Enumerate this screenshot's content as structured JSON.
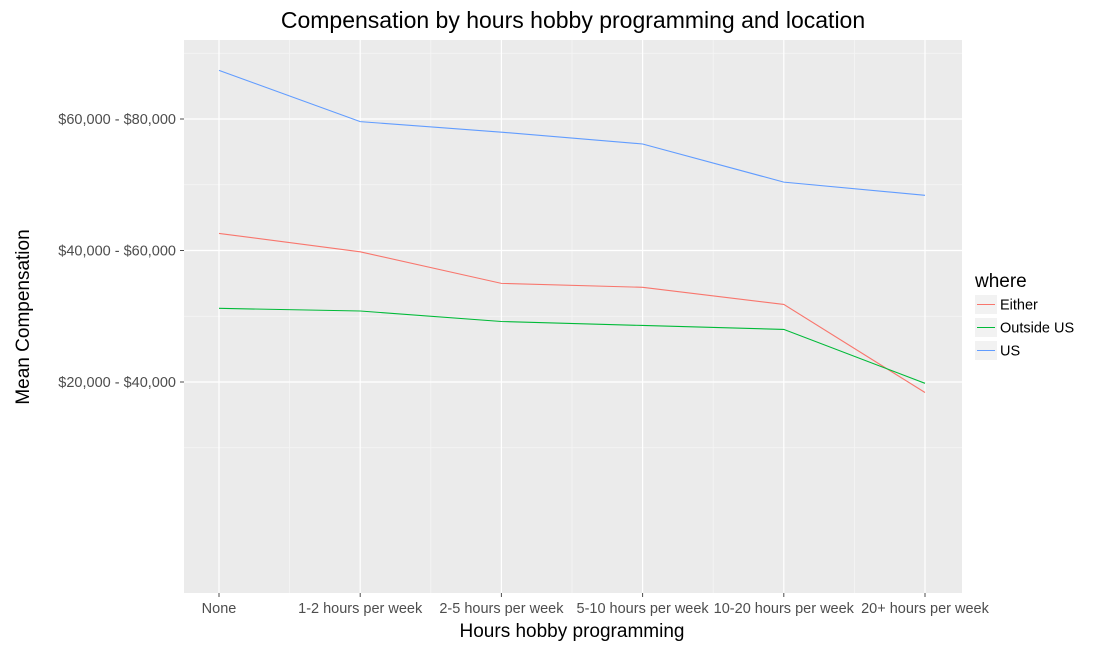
{
  "chart_data": {
    "type": "line",
    "title": "Compensation by hours hobby programming and location",
    "xlabel": "Hours hobby programming",
    "ylabel": "Mean Compensation",
    "categories": [
      "None",
      "1-2 hours per week",
      "2-5 hours per week",
      "5-10 hours per week",
      "10-20 hours per week",
      "20+ hours per week"
    ],
    "y_tick_labels": [
      "$20,000 - $40,000",
      "$40,000 - $60,000",
      "$60,000 - $80,000"
    ],
    "y_tick_positions": [
      3,
      4,
      5
    ],
    "ylim": [
      0.2,
      5.5
    ],
    "legend": {
      "title": "where",
      "position": "right"
    },
    "grid": true,
    "series": [
      {
        "name": "Either",
        "color": "#F8766D",
        "values": [
          4.13,
          3.99,
          3.75,
          3.72,
          3.59,
          2.92
        ]
      },
      {
        "name": "Outside US",
        "color": "#00BA38",
        "values": [
          3.56,
          3.54,
          3.46,
          3.43,
          3.4,
          2.99
        ]
      },
      {
        "name": "US",
        "color": "#619CFF",
        "values": [
          5.37,
          4.98,
          4.9,
          4.81,
          4.52,
          4.42
        ]
      }
    ]
  }
}
